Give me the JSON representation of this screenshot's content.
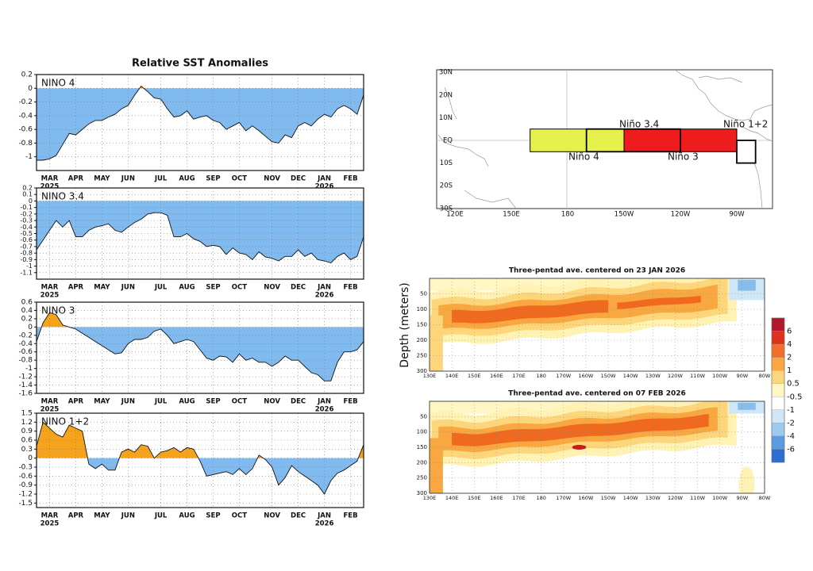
{
  "title": "Relative SST Anomalies",
  "chart_data": [
    {
      "type": "area",
      "title": "NINO 4",
      "categories": [
        null,
        null,
        "MAR",
        null,
        null,
        null,
        "APR",
        null,
        null,
        null,
        "MAY",
        null,
        null,
        null,
        "JUN",
        null,
        null,
        null,
        null,
        "JUL",
        null,
        null,
        null,
        "AUG",
        null,
        null,
        null,
        "SEP",
        null,
        null,
        null,
        "OCT",
        null,
        null,
        null,
        null,
        "NOV",
        null,
        null,
        null,
        "DEC",
        null,
        null,
        null,
        "JAN",
        null,
        null,
        null,
        "FEB",
        null,
        null
      ],
      "sublabels": [
        null,
        null,
        "2025",
        null,
        null,
        null,
        null,
        null,
        null,
        null,
        null,
        null,
        null,
        null,
        null,
        null,
        null,
        null,
        null,
        null,
        null,
        null,
        null,
        null,
        null,
        null,
        null,
        null,
        null,
        null,
        null,
        null,
        null,
        null,
        null,
        null,
        null,
        null,
        null,
        null,
        null,
        null,
        null,
        null,
        "2026",
        null,
        null,
        null,
        null,
        null,
        null
      ],
      "values": [
        -1.05,
        -1.05,
        -1.03,
        -0.98,
        -0.82,
        -0.66,
        -0.68,
        -0.6,
        -0.52,
        -0.47,
        -0.47,
        -0.42,
        -0.38,
        -0.3,
        -0.25,
        -0.1,
        0.03,
        -0.05,
        -0.14,
        -0.16,
        -0.3,
        -0.42,
        -0.4,
        -0.33,
        -0.45,
        -0.42,
        -0.4,
        -0.47,
        -0.5,
        -0.6,
        -0.55,
        -0.5,
        -0.62,
        -0.55,
        -0.62,
        -0.7,
        -0.78,
        -0.8,
        -0.68,
        -0.72,
        -0.55,
        -0.5,
        -0.55,
        -0.45,
        -0.38,
        -0.42,
        -0.3,
        -0.25,
        -0.3,
        -0.38,
        -0.1
      ],
      "ylim": [
        -1.2,
        0.2
      ],
      "yticks": [
        0.2,
        0,
        -0.2,
        -0.4,
        -0.6,
        -0.8,
        -1
      ],
      "positive_color": "#f5a31d",
      "negative_color": "#80baee",
      "grid": true
    },
    {
      "type": "area",
      "title": "NINO 3.4",
      "categories": [
        null,
        null,
        "MAR",
        null,
        null,
        null,
        "APR",
        null,
        null,
        null,
        "MAY",
        null,
        null,
        null,
        "JUN",
        null,
        null,
        null,
        null,
        "JUL",
        null,
        null,
        null,
        "AUG",
        null,
        null,
        null,
        "SEP",
        null,
        null,
        null,
        "OCT",
        null,
        null,
        null,
        null,
        "NOV",
        null,
        null,
        null,
        "DEC",
        null,
        null,
        null,
        "JAN",
        null,
        null,
        null,
        "FEB",
        null,
        null
      ],
      "sublabels": [
        null,
        null,
        "2025",
        null,
        null,
        null,
        null,
        null,
        null,
        null,
        null,
        null,
        null,
        null,
        null,
        null,
        null,
        null,
        null,
        null,
        null,
        null,
        null,
        null,
        null,
        null,
        null,
        null,
        null,
        null,
        null,
        null,
        null,
        null,
        null,
        null,
        null,
        null,
        null,
        null,
        null,
        null,
        null,
        null,
        "2026",
        null,
        null,
        null,
        null,
        null,
        null
      ],
      "values": [
        -0.75,
        -0.6,
        -0.45,
        -0.3,
        -0.4,
        -0.3,
        -0.55,
        -0.55,
        -0.45,
        -0.4,
        -0.38,
        -0.35,
        -0.45,
        -0.48,
        -0.4,
        -0.33,
        -0.28,
        -0.2,
        -0.18,
        -0.18,
        -0.22,
        -0.55,
        -0.55,
        -0.5,
        -0.58,
        -0.62,
        -0.7,
        -0.68,
        -0.7,
        -0.82,
        -0.72,
        -0.8,
        -0.82,
        -0.9,
        -0.78,
        -0.86,
        -0.88,
        -0.92,
        -0.85,
        -0.85,
        -0.75,
        -0.85,
        -0.8,
        -0.9,
        -0.92,
        -0.95,
        -0.85,
        -0.8,
        -0.9,
        -0.85,
        -0.55
      ],
      "ylim": [
        -1.2,
        0.2
      ],
      "yticks": [
        0.2,
        0.1,
        0,
        -0.1,
        -0.2,
        -0.3,
        -0.4,
        -0.5,
        -0.6,
        -0.7,
        -0.8,
        -0.9,
        -1,
        -1.1
      ],
      "positive_color": "#f5a31d",
      "negative_color": "#80baee",
      "grid": true
    },
    {
      "type": "area",
      "title": "NINO 3",
      "categories": [
        null,
        null,
        "MAR",
        null,
        null,
        null,
        "APR",
        null,
        null,
        null,
        "MAY",
        null,
        null,
        null,
        "JUN",
        null,
        null,
        null,
        null,
        "JUL",
        null,
        null,
        null,
        "AUG",
        null,
        null,
        null,
        "SEP",
        null,
        null,
        null,
        "OCT",
        null,
        null,
        null,
        null,
        "NOV",
        null,
        null,
        null,
        "DEC",
        null,
        null,
        null,
        "JAN",
        null,
        null,
        null,
        "FEB",
        null,
        null
      ],
      "sublabels": [
        null,
        null,
        "2025",
        null,
        null,
        null,
        null,
        null,
        null,
        null,
        null,
        null,
        null,
        null,
        null,
        null,
        null,
        null,
        null,
        null,
        null,
        null,
        null,
        null,
        null,
        null,
        null,
        null,
        null,
        null,
        null,
        null,
        null,
        null,
        null,
        null,
        null,
        null,
        null,
        null,
        null,
        null,
        null,
        null,
        "2026",
        null,
        null,
        null,
        null,
        null,
        null
      ],
      "values": [
        -0.35,
        0.1,
        0.35,
        0.3,
        0.05,
        0,
        -0.05,
        -0.15,
        -0.25,
        -0.35,
        -0.45,
        -0.55,
        -0.65,
        -0.62,
        -0.4,
        -0.3,
        -0.3,
        -0.25,
        -0.1,
        -0.05,
        -0.2,
        -0.4,
        -0.35,
        -0.3,
        -0.35,
        -0.55,
        -0.75,
        -0.8,
        -0.7,
        -0.72,
        -0.85,
        -0.65,
        -0.8,
        -0.75,
        -0.85,
        -0.85,
        -0.95,
        -0.85,
        -0.7,
        -0.8,
        -0.8,
        -0.95,
        -1.1,
        -1.15,
        -1.3,
        -1.3,
        -0.85,
        -0.6,
        -0.6,
        -0.55,
        -0.35
      ],
      "ylim": [
        -1.6,
        0.6
      ],
      "yticks": [
        0.6,
        0.4,
        0.2,
        0,
        -0.2,
        -0.4,
        -0.6,
        -0.8,
        -1,
        -1.2,
        -1.4,
        -1.6
      ],
      "positive_color": "#f5a31d",
      "negative_color": "#80baee",
      "grid": true
    },
    {
      "type": "area",
      "title": "NINO 1+2",
      "categories": [
        null,
        null,
        "MAR",
        null,
        null,
        null,
        "APR",
        null,
        null,
        null,
        "MAY",
        null,
        null,
        null,
        "JUN",
        null,
        null,
        null,
        null,
        "JUL",
        null,
        null,
        null,
        "AUG",
        null,
        null,
        null,
        "SEP",
        null,
        null,
        null,
        "OCT",
        null,
        null,
        null,
        null,
        "NOV",
        null,
        null,
        null,
        "DEC",
        null,
        null,
        null,
        "JAN",
        null,
        null,
        null,
        "FEB",
        null,
        null
      ],
      "sublabels": [
        null,
        null,
        "2025",
        null,
        null,
        null,
        null,
        null,
        null,
        null,
        null,
        null,
        null,
        null,
        null,
        null,
        null,
        null,
        null,
        null,
        null,
        null,
        null,
        null,
        null,
        null,
        null,
        null,
        null,
        null,
        null,
        null,
        null,
        null,
        null,
        null,
        null,
        null,
        null,
        null,
        null,
        null,
        null,
        null,
        "2026",
        null,
        null,
        null,
        null,
        null,
        null
      ],
      "values": [
        0.4,
        1.2,
        1,
        0.8,
        0.7,
        1.1,
        1,
        0.9,
        -0.2,
        -0.35,
        -0.2,
        -0.4,
        -0.4,
        0.2,
        0.3,
        0.2,
        0.45,
        0.4,
        0,
        0.2,
        0.25,
        0.35,
        0.2,
        0.35,
        0.3,
        -0.1,
        -0.6,
        -0.55,
        -0.5,
        -0.45,
        -0.55,
        -0.35,
        -0.55,
        -0.35,
        0.1,
        -0.05,
        -0.3,
        -0.9,
        -0.65,
        -0.25,
        -0.45,
        -0.6,
        -0.75,
        -0.9,
        -1.2,
        -0.75,
        -0.5,
        -0.4,
        -0.25,
        -0.1,
        0.45
      ],
      "ylim": [
        -1.65,
        1.5
      ],
      "yticks": [
        1.5,
        1.2,
        0.9,
        0.6,
        0.3,
        0,
        -0.3,
        -0.6,
        -0.9,
        -1.2,
        -1.5
      ],
      "positive_color": "#f5a31d",
      "negative_color": "#80baee",
      "grid": true
    }
  ],
  "map": {
    "lat_labels": [
      "30N",
      "20N",
      "10N",
      "EQ",
      "10S",
      "20S",
      "30S"
    ],
    "lon_labels": [
      "120E",
      "150E",
      "180",
      "150W",
      "120W",
      "90W"
    ],
    "regions": [
      "Niño 4",
      "Niño 3.4",
      "Niño 3",
      "Niño 1+2"
    ]
  },
  "depth_sections": {
    "y_label": "Depth (meters)",
    "panels": [
      {
        "title": "Three-pentad ave. centered on 23 JAN 2026"
      },
      {
        "title": "Three-pentad ave. centered on 07 FEB 2026"
      }
    ],
    "depth_ticks": [
      50,
      100,
      150,
      200,
      250,
      300
    ],
    "lon_labels": [
      "130E",
      "140E",
      "150E",
      "160E",
      "170E",
      "180",
      "170W",
      "160W",
      "150W",
      "140W",
      "130W",
      "120W",
      "110W",
      "100W",
      "90W",
      "80W"
    ],
    "colorbar_labels": [
      6,
      4,
      2,
      1,
      0.5,
      -0.5,
      -1,
      -2,
      -4,
      -6
    ]
  }
}
